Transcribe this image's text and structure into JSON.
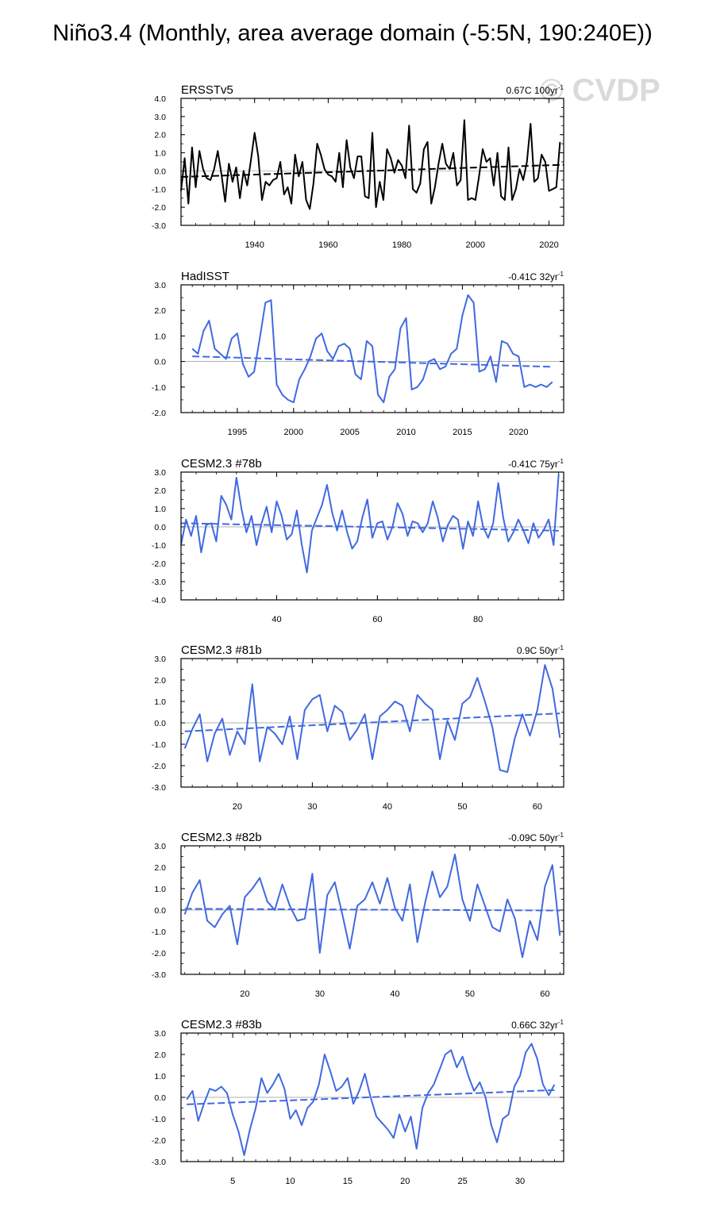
{
  "title": "Niño3.4 (Monthly, area average domain (-5:5N, 190:240E))",
  "watermark": "© CVDP",
  "colors": {
    "obs": "#000000",
    "model": "#4169e1",
    "zero_line": "#999999"
  },
  "chart_data": [
    {
      "type": "line",
      "name": "ERSSTv5",
      "trend_label": "0.67C 100yr",
      "trend_label_sup": "-1",
      "color": "#000000",
      "xlim": [
        1920,
        2024
      ],
      "ylim": [
        -3.0,
        4.0
      ],
      "yticks": [
        -3.0,
        -2.0,
        -1.0,
        0.0,
        1.0,
        2.0,
        3.0,
        4.0
      ],
      "xticks": [
        1940,
        1960,
        1980,
        2000,
        2020
      ],
      "trend": [
        [
          1920,
          -0.33
        ],
        [
          2024,
          0.34
        ]
      ],
      "series": [
        {
          "x": [
            1920,
            1921,
            1922,
            1923,
            1924,
            1925,
            1926,
            1927,
            1928,
            1929,
            1930,
            1931,
            1932,
            1933,
            1934,
            1935,
            1936,
            1937,
            1938,
            1939,
            1940,
            1941,
            1942,
            1943,
            1944,
            1945,
            1946,
            1947,
            1948,
            1949,
            1950,
            1951,
            1952,
            1953,
            1954,
            1955,
            1956,
            1957,
            1958,
            1959,
            1960,
            1961,
            1962,
            1963,
            1964,
            1965,
            1966,
            1967,
            1968,
            1969,
            1970,
            1971,
            1972,
            1973,
            1974,
            1975,
            1976,
            1977,
            1978,
            1979,
            1980,
            1981,
            1982,
            1983,
            1984,
            1985,
            1986,
            1987,
            1988,
            1989,
            1990,
            1991,
            1992,
            1993,
            1994,
            1995,
            1996,
            1997,
            1998,
            1999,
            2000,
            2001,
            2002,
            2003,
            2004,
            2005,
            2006,
            2007,
            2008,
            2009,
            2010,
            2011,
            2012,
            2013,
            2014,
            2015,
            2016,
            2017,
            2018,
            2019,
            2020,
            2021,
            2022,
            2023
          ],
          "y": [
            -1.1,
            0.7,
            -1.8,
            1.3,
            -0.9,
            1.1,
            0.1,
            -0.4,
            -0.5,
            0.1,
            1.1,
            -0.2,
            -1.7,
            0.4,
            -0.6,
            0.2,
            -1.5,
            0.0,
            -0.8,
            0.6,
            2.1,
            0.8,
            -1.6,
            -0.6,
            -0.8,
            -0.5,
            -0.4,
            0.5,
            -1.3,
            -0.9,
            -1.8,
            0.9,
            -0.3,
            0.5,
            -1.6,
            -2.1,
            -0.7,
            1.5,
            0.9,
            0.1,
            -0.2,
            -0.3,
            -0.6,
            1.0,
            -0.9,
            1.7,
            0.2,
            -0.4,
            0.8,
            0.8,
            -1.4,
            -1.5,
            2.1,
            -2.0,
            -0.6,
            -1.6,
            1.2,
            0.7,
            -0.1,
            0.6,
            0.3,
            -0.4,
            2.5,
            -1.0,
            -1.2,
            -0.7,
            1.2,
            1.6,
            -1.8,
            -0.9,
            0.4,
            1.5,
            0.4,
            0.1,
            1.0,
            -0.8,
            -0.5,
            2.8,
            -1.6,
            -1.5,
            -1.6,
            -0.3,
            1.2,
            0.5,
            0.7,
            -0.8,
            1.0,
            -1.4,
            -1.6,
            1.3,
            -1.6,
            -1.0,
            0.1,
            -0.5,
            0.5,
            2.6,
            -0.6,
            -0.4,
            0.9,
            0.5,
            -1.1,
            -1.0,
            -0.9,
            1.6
          ]
        }
      ]
    },
    {
      "type": "line",
      "name": "HadISST",
      "trend_label": "-0.41C 32yr",
      "trend_label_sup": "-1",
      "color": "#4169e1",
      "xlim": [
        1990,
        2024
      ],
      "ylim": [
        -2.0,
        3.0
      ],
      "yticks": [
        -2.0,
        -1.0,
        0.0,
        1.0,
        2.0,
        3.0
      ],
      "xticks": [
        1995,
        2000,
        2005,
        2010,
        2015,
        2020
      ],
      "trend": [
        [
          1991,
          0.2
        ],
        [
          2023,
          -0.21
        ]
      ],
      "series": [
        {
          "x": [
            1991,
            1991.5,
            1992,
            1992.5,
            1993,
            1993.5,
            1994,
            1994.5,
            1995,
            1995.5,
            1996,
            1996.5,
            1997,
            1997.5,
            1998,
            1998.5,
            1999,
            1999.5,
            2000,
            2000.5,
            2001,
            2001.5,
            2002,
            2002.5,
            2003,
            2003.5,
            2004,
            2004.5,
            2005,
            2005.5,
            2006,
            2006.5,
            2007,
            2007.5,
            2008,
            2008.5,
            2009,
            2009.5,
            2010,
            2010.5,
            2011,
            2011.5,
            2012,
            2012.5,
            2013,
            2013.5,
            2014,
            2014.5,
            2015,
            2015.5,
            2016,
            2016.5,
            2017,
            2017.5,
            2018,
            2018.5,
            2019,
            2019.5,
            2020,
            2020.5,
            2021,
            2021.5,
            2022,
            2022.5,
            2023
          ],
          "y": [
            0.5,
            0.3,
            1.2,
            1.6,
            0.5,
            0.3,
            0.1,
            0.9,
            1.1,
            -0.1,
            -0.6,
            -0.4,
            0.9,
            2.3,
            2.4,
            -0.9,
            -1.3,
            -1.5,
            -1.6,
            -0.7,
            -0.3,
            0.2,
            0.9,
            1.1,
            0.4,
            0.1,
            0.6,
            0.7,
            0.5,
            -0.5,
            -0.7,
            0.8,
            0.6,
            -1.3,
            -1.6,
            -0.6,
            -0.3,
            1.3,
            1.7,
            -1.1,
            -1.0,
            -0.7,
            0.0,
            0.1,
            -0.3,
            -0.2,
            0.3,
            0.5,
            1.8,
            2.6,
            2.3,
            -0.4,
            -0.3,
            0.2,
            -0.8,
            0.8,
            0.7,
            0.3,
            0.2,
            -1.0,
            -0.9,
            -1.0,
            -0.9,
            -1.0,
            -0.8
          ]
        }
      ]
    },
    {
      "type": "line",
      "name": "CESM2.3 #78b",
      "trend_label": "-0.41C 75yr",
      "trend_label_sup": "-1",
      "color": "#4169e1",
      "xlim": [
        21,
        97
      ],
      "ylim": [
        -4.0,
        3.0
      ],
      "yticks": [
        -4.0,
        -3.0,
        -2.0,
        -1.0,
        0.0,
        1.0,
        2.0,
        3.0
      ],
      "xticks": [
        40,
        60,
        80
      ],
      "trend": [
        [
          21,
          0.2
        ],
        [
          96,
          -0.21
        ]
      ],
      "series": [
        {
          "x": [
            21,
            22,
            23,
            24,
            25,
            26,
            27,
            28,
            29,
            30,
            31,
            32,
            33,
            34,
            35,
            36,
            37,
            38,
            39,
            40,
            41,
            42,
            43,
            44,
            45,
            46,
            47,
            48,
            49,
            50,
            51,
            52,
            53,
            54,
            55,
            56,
            57,
            58,
            59,
            60,
            61,
            62,
            63,
            64,
            65,
            66,
            67,
            68,
            69,
            70,
            71,
            72,
            73,
            74,
            75,
            76,
            77,
            78,
            79,
            80,
            81,
            82,
            83,
            84,
            85,
            86,
            87,
            88,
            89,
            90,
            91,
            92,
            93,
            94,
            95,
            96
          ],
          "y": [
            -1.0,
            0.4,
            -0.5,
            0.6,
            -1.4,
            0.1,
            0.2,
            -0.8,
            1.7,
            1.2,
            0.4,
            2.7,
            1.0,
            -0.3,
            0.6,
            -1.0,
            0.2,
            1.1,
            -0.3,
            1.4,
            0.6,
            -0.7,
            -0.4,
            0.9,
            -1.0,
            -2.5,
            -0.2,
            0.5,
            1.2,
            2.3,
            0.8,
            -0.2,
            0.9,
            -0.3,
            -1.2,
            -0.8,
            0.5,
            1.5,
            -0.6,
            0.2,
            0.3,
            -0.7,
            0.0,
            1.3,
            0.7,
            -0.5,
            0.3,
            0.2,
            -0.3,
            0.2,
            1.4,
            0.5,
            -0.8,
            0.1,
            0.6,
            0.4,
            -1.2,
            0.3,
            -0.5,
            1.4,
            0.0,
            -0.6,
            0.2,
            2.4,
            0.5,
            -0.8,
            -0.3,
            0.4,
            -0.2,
            -0.9,
            0.2,
            -0.6,
            -0.2,
            0.4,
            -1.0,
            2.9
          ]
        }
      ]
    },
    {
      "type": "line",
      "name": "CESM2.3 #81b",
      "trend_label": "0.9C 50yr",
      "trend_label_sup": "-1",
      "color": "#4169e1",
      "xlim": [
        12.5,
        63.5
      ],
      "ylim": [
        -3.0,
        3.0
      ],
      "yticks": [
        -3.0,
        -2.0,
        -1.0,
        0.0,
        1.0,
        2.0,
        3.0
      ],
      "xticks": [
        20,
        30,
        40,
        50,
        60
      ],
      "trend": [
        [
          13,
          -0.4
        ],
        [
          63,
          0.44
        ]
      ],
      "series": [
        {
          "x": [
            13,
            14,
            15,
            16,
            17,
            18,
            19,
            20,
            21,
            22,
            23,
            24,
            25,
            26,
            27,
            28,
            29,
            30,
            31,
            32,
            33,
            34,
            35,
            36,
            37,
            38,
            39,
            40,
            41,
            42,
            43,
            44,
            45,
            46,
            47,
            48,
            49,
            50,
            51,
            52,
            53,
            54,
            55,
            56,
            57,
            58,
            59,
            60,
            61,
            62,
            63
          ],
          "y": [
            -1.2,
            -0.3,
            0.4,
            -1.8,
            -0.5,
            0.2,
            -1.5,
            -0.4,
            -1.0,
            1.8,
            -1.8,
            -0.2,
            -0.5,
            -1.0,
            0.3,
            -1.7,
            0.6,
            1.1,
            1.3,
            -0.4,
            0.8,
            0.5,
            -0.8,
            -0.3,
            0.4,
            -1.7,
            0.3,
            0.6,
            1.0,
            0.8,
            -0.4,
            1.3,
            0.9,
            0.6,
            -1.7,
            0.1,
            -0.8,
            0.9,
            1.2,
            2.1,
            1.0,
            -0.2,
            -2.2,
            -2.3,
            -0.7,
            0.4,
            -0.6,
            0.6,
            2.7,
            1.6,
            -0.7
          ]
        }
      ]
    },
    {
      "type": "line",
      "name": "CESM2.3 #82b",
      "trend_label": "-0.09C 50yr",
      "trend_label_sup": "-1",
      "color": "#4169e1",
      "xlim": [
        11.5,
        62.5
      ],
      "ylim": [
        -3.0,
        3.0
      ],
      "yticks": [
        -3.0,
        -2.0,
        -1.0,
        0.0,
        1.0,
        2.0,
        3.0
      ],
      "xticks": [
        20,
        30,
        40,
        50,
        60
      ],
      "trend": [
        [
          12,
          0.06
        ],
        [
          62,
          -0.02
        ]
      ],
      "series": [
        {
          "x": [
            12,
            13,
            14,
            15,
            16,
            17,
            18,
            19,
            20,
            21,
            22,
            23,
            24,
            25,
            26,
            27,
            28,
            29,
            30,
            31,
            32,
            33,
            34,
            35,
            36,
            37,
            38,
            39,
            40,
            41,
            42,
            43,
            44,
            45,
            46,
            47,
            48,
            49,
            50,
            51,
            52,
            53,
            54,
            55,
            56,
            57,
            58,
            59,
            60,
            61,
            62
          ],
          "y": [
            -0.2,
            0.8,
            1.4,
            -0.5,
            -0.8,
            -0.2,
            0.2,
            -1.6,
            0.6,
            1.0,
            1.5,
            0.4,
            0.0,
            1.2,
            0.2,
            -0.5,
            -0.4,
            1.7,
            -2.0,
            0.7,
            1.3,
            -0.2,
            -1.8,
            0.2,
            0.5,
            1.3,
            0.3,
            1.5,
            0.1,
            -0.5,
            1.2,
            -1.5,
            0.3,
            1.8,
            0.6,
            1.1,
            2.6,
            0.5,
            -0.5,
            1.2,
            0.2,
            -0.8,
            -1.0,
            0.5,
            -0.4,
            -2.2,
            -0.5,
            -1.4,
            1.1,
            2.1,
            -1.2
          ]
        }
      ]
    },
    {
      "type": "line",
      "name": "CESM2.3 #83b",
      "trend_label": "0.66C 32yr",
      "trend_label_sup": "-1",
      "color": "#4169e1",
      "xlim": [
        0.5,
        33.8
      ],
      "ylim": [
        -3.0,
        3.0
      ],
      "yticks": [
        -3.0,
        -2.0,
        -1.0,
        0.0,
        1.0,
        2.0,
        3.0
      ],
      "xticks": [
        5,
        10,
        15,
        20,
        25,
        30
      ],
      "trend": [
        [
          1,
          -0.33
        ],
        [
          33,
          0.34
        ]
      ],
      "series": [
        {
          "x": [
            1,
            1.5,
            2,
            2.5,
            3,
            3.5,
            4,
            4.5,
            5,
            5.5,
            6,
            6.5,
            7,
            7.5,
            8,
            8.5,
            9,
            9.5,
            10,
            10.5,
            11,
            11.5,
            12,
            12.5,
            13,
            13.5,
            14,
            14.5,
            15,
            15.5,
            16,
            16.5,
            17,
            17.5,
            18,
            18.5,
            19,
            19.5,
            20,
            20.5,
            21,
            21.5,
            22,
            22.5,
            23,
            23.5,
            24,
            24.5,
            25,
            25.5,
            26,
            26.5,
            27,
            27.5,
            28,
            28.5,
            29,
            29.5,
            30,
            30.5,
            31,
            31.5,
            32,
            32.5,
            33
          ],
          "y": [
            -0.1,
            0.3,
            -1.1,
            -0.3,
            0.4,
            0.3,
            0.5,
            0.2,
            -0.8,
            -1.6,
            -2.7,
            -1.5,
            -0.5,
            0.9,
            0.2,
            0.6,
            1.1,
            0.4,
            -1.0,
            -0.6,
            -1.3,
            -0.5,
            -0.2,
            0.6,
            2.0,
            1.2,
            0.3,
            0.5,
            0.9,
            -0.3,
            0.3,
            1.1,
            0.0,
            -0.9,
            -1.2,
            -1.5,
            -1.9,
            -0.8,
            -1.6,
            -0.9,
            -2.4,
            -0.5,
            0.2,
            0.6,
            1.3,
            2.0,
            2.2,
            1.4,
            1.9,
            1.0,
            0.3,
            0.7,
            0.0,
            -1.3,
            -2.1,
            -1.0,
            -0.8,
            0.5,
            1.0,
            2.1,
            2.5,
            1.8,
            0.6,
            0.1,
            0.6
          ]
        }
      ]
    }
  ]
}
